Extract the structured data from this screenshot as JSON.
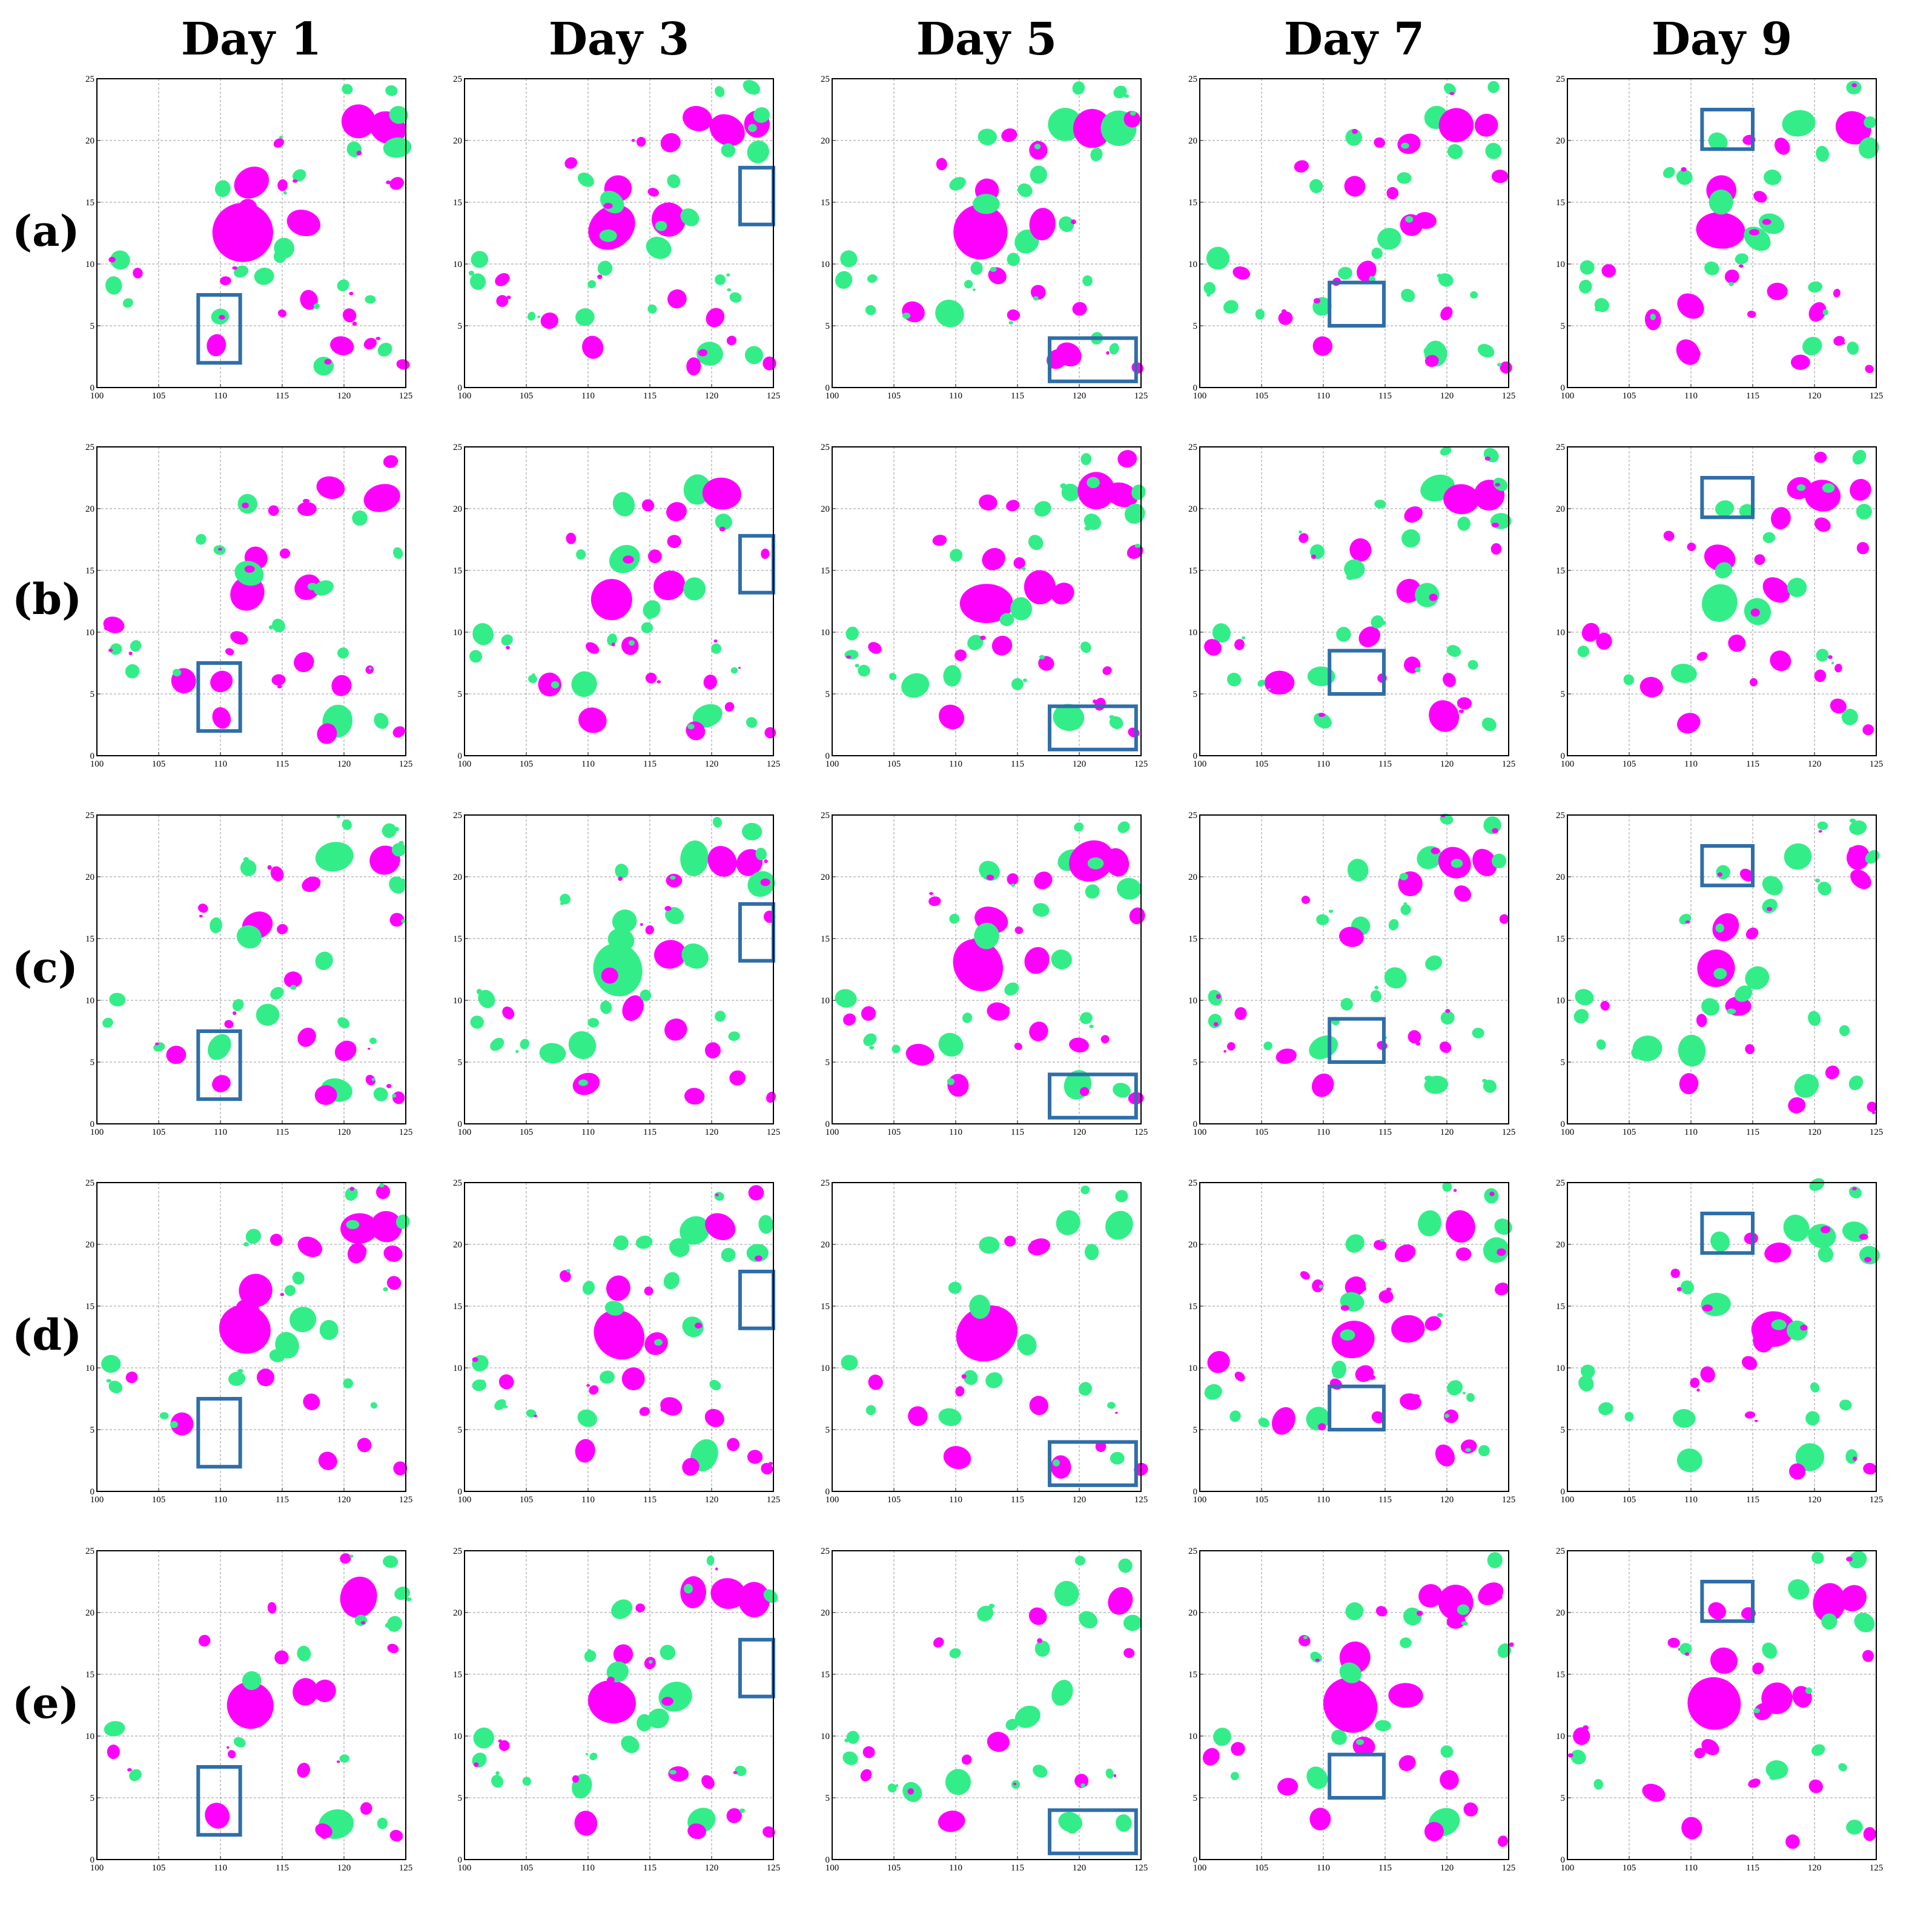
{
  "figure": {
    "column_titles": [
      "Day 1",
      "Day 3",
      "Day 5",
      "Day 7",
      "Day 9"
    ],
    "row_labels": [
      "(a)",
      "(b)",
      "(c)",
      "(d)",
      "(e)"
    ]
  },
  "colors": {
    "green": "#33ee88",
    "magenta": "#ff00ff",
    "box": "#2f6ea8",
    "grid": "#9a9a9a"
  },
  "chart_data": {
    "type": "scatter",
    "description_free": true,
    "layout": "5 rows x 5 columns of map panels",
    "xlim": [
      100,
      125
    ],
    "ylim": [
      0,
      25
    ],
    "x_ticks": [
      100,
      105,
      110,
      115,
      120,
      125
    ],
    "y_ticks": [
      0,
      5,
      10,
      15,
      20,
      25
    ],
    "grid": true,
    "series_colors": [
      "green",
      "magenta"
    ],
    "highlight_boxes_by_day": [
      {
        "day": "Day 1",
        "x": [
          108.2,
          111.6
        ],
        "y": [
          2.0,
          7.5
        ]
      },
      {
        "day": "Day 3",
        "x": [
          122.3,
          125.8
        ],
        "y": [
          13.2,
          17.8
        ]
      },
      {
        "day": "Day 5",
        "x": [
          117.6,
          124.6
        ],
        "y": [
          0.5,
          4.0
        ]
      },
      {
        "day": "Day 7",
        "x": [
          110.5,
          114.9
        ],
        "y": [
          5.0,
          8.5
        ]
      },
      {
        "day": "Day 9",
        "x": [
          110.9,
          115.0
        ],
        "y": [
          19.3,
          22.5
        ]
      }
    ],
    "base_blobs": [
      {
        "x": 101.5,
        "y": 10.3,
        "r": 0.7,
        "c": "g"
      },
      {
        "x": 101.2,
        "y": 8.4,
        "r": 0.55,
        "c": "g"
      },
      {
        "x": 103.2,
        "y": 8.9,
        "r": 0.5,
        "c": "m"
      },
      {
        "x": 102.8,
        "y": 6.7,
        "r": 0.45,
        "c": "g"
      },
      {
        "x": 106.8,
        "y": 5.8,
        "r": 0.85,
        "c": "m"
      },
      {
        "x": 109.8,
        "y": 6.0,
        "r": 0.95,
        "c": "g"
      },
      {
        "x": 110.0,
        "y": 3.2,
        "r": 0.85,
        "c": "m"
      },
      {
        "x": 108.5,
        "y": 17.8,
        "r": 0.45,
        "c": "m"
      },
      {
        "x": 109.8,
        "y": 16.4,
        "r": 0.5,
        "c": "g"
      },
      {
        "x": 112.2,
        "y": 12.8,
        "r": 1.8,
        "c": "m"
      },
      {
        "x": 112.7,
        "y": 16.3,
        "r": 1.05,
        "c": "m"
      },
      {
        "x": 112.3,
        "y": 14.8,
        "r": 0.85,
        "c": "g"
      },
      {
        "x": 112.5,
        "y": 20.4,
        "r": 0.75,
        "c": "g"
      },
      {
        "x": 114.5,
        "y": 20.1,
        "r": 0.5,
        "c": "m"
      },
      {
        "x": 115.5,
        "y": 11.5,
        "r": 0.85,
        "c": "g"
      },
      {
        "x": 116.9,
        "y": 13.6,
        "r": 1.2,
        "c": "m"
      },
      {
        "x": 118.6,
        "y": 13.4,
        "r": 0.85,
        "c": "g"
      },
      {
        "x": 116.7,
        "y": 17.0,
        "r": 0.55,
        "c": "g"
      },
      {
        "x": 115.3,
        "y": 16.0,
        "r": 0.45,
        "c": "m"
      },
      {
        "x": 117.0,
        "y": 19.6,
        "r": 0.8,
        "c": "m"
      },
      {
        "x": 118.9,
        "y": 21.4,
        "r": 1.05,
        "c": "g"
      },
      {
        "x": 121.0,
        "y": 21.3,
        "r": 1.4,
        "c": "m"
      },
      {
        "x": 123.4,
        "y": 21.2,
        "r": 1.1,
        "c": "m"
      },
      {
        "x": 124.1,
        "y": 19.1,
        "r": 0.8,
        "c": "g"
      },
      {
        "x": 124.4,
        "y": 21.8,
        "r": 0.55,
        "c": "g"
      },
      {
        "x": 123.5,
        "y": 24.0,
        "r": 0.55,
        "c": "g"
      },
      {
        "x": 120.3,
        "y": 24.2,
        "r": 0.45,
        "c": "g"
      },
      {
        "x": 121.0,
        "y": 19.2,
        "r": 0.6,
        "c": "g"
      },
      {
        "x": 124.3,
        "y": 16.7,
        "r": 0.5,
        "c": "m"
      },
      {
        "x": 113.5,
        "y": 9.0,
        "r": 0.8,
        "c": "m"
      },
      {
        "x": 114.5,
        "y": 10.8,
        "r": 0.55,
        "c": "g"
      },
      {
        "x": 111.6,
        "y": 9.5,
        "r": 0.55,
        "c": "g"
      },
      {
        "x": 117.0,
        "y": 7.2,
        "r": 0.65,
        "c": "m"
      },
      {
        "x": 114.8,
        "y": 6.3,
        "r": 0.4,
        "c": "m"
      },
      {
        "x": 119.5,
        "y": 3.0,
        "r": 1.0,
        "c": "g"
      },
      {
        "x": 120.1,
        "y": 5.9,
        "r": 0.65,
        "c": "m"
      },
      {
        "x": 118.6,
        "y": 2.1,
        "r": 0.7,
        "c": "m"
      },
      {
        "x": 121.8,
        "y": 3.9,
        "r": 0.5,
        "c": "m"
      },
      {
        "x": 123.2,
        "y": 2.7,
        "r": 0.55,
        "c": "g"
      },
      {
        "x": 124.6,
        "y": 2.0,
        "r": 0.45,
        "c": "m"
      },
      {
        "x": 120.3,
        "y": 8.5,
        "r": 0.45,
        "c": "g"
      },
      {
        "x": 122.2,
        "y": 7.0,
        "r": 0.35,
        "c": "g"
      },
      {
        "x": 105.2,
        "y": 6.2,
        "r": 0.35,
        "c": "g"
      },
      {
        "x": 110.7,
        "y": 8.4,
        "r": 0.4,
        "c": "m"
      }
    ]
  }
}
